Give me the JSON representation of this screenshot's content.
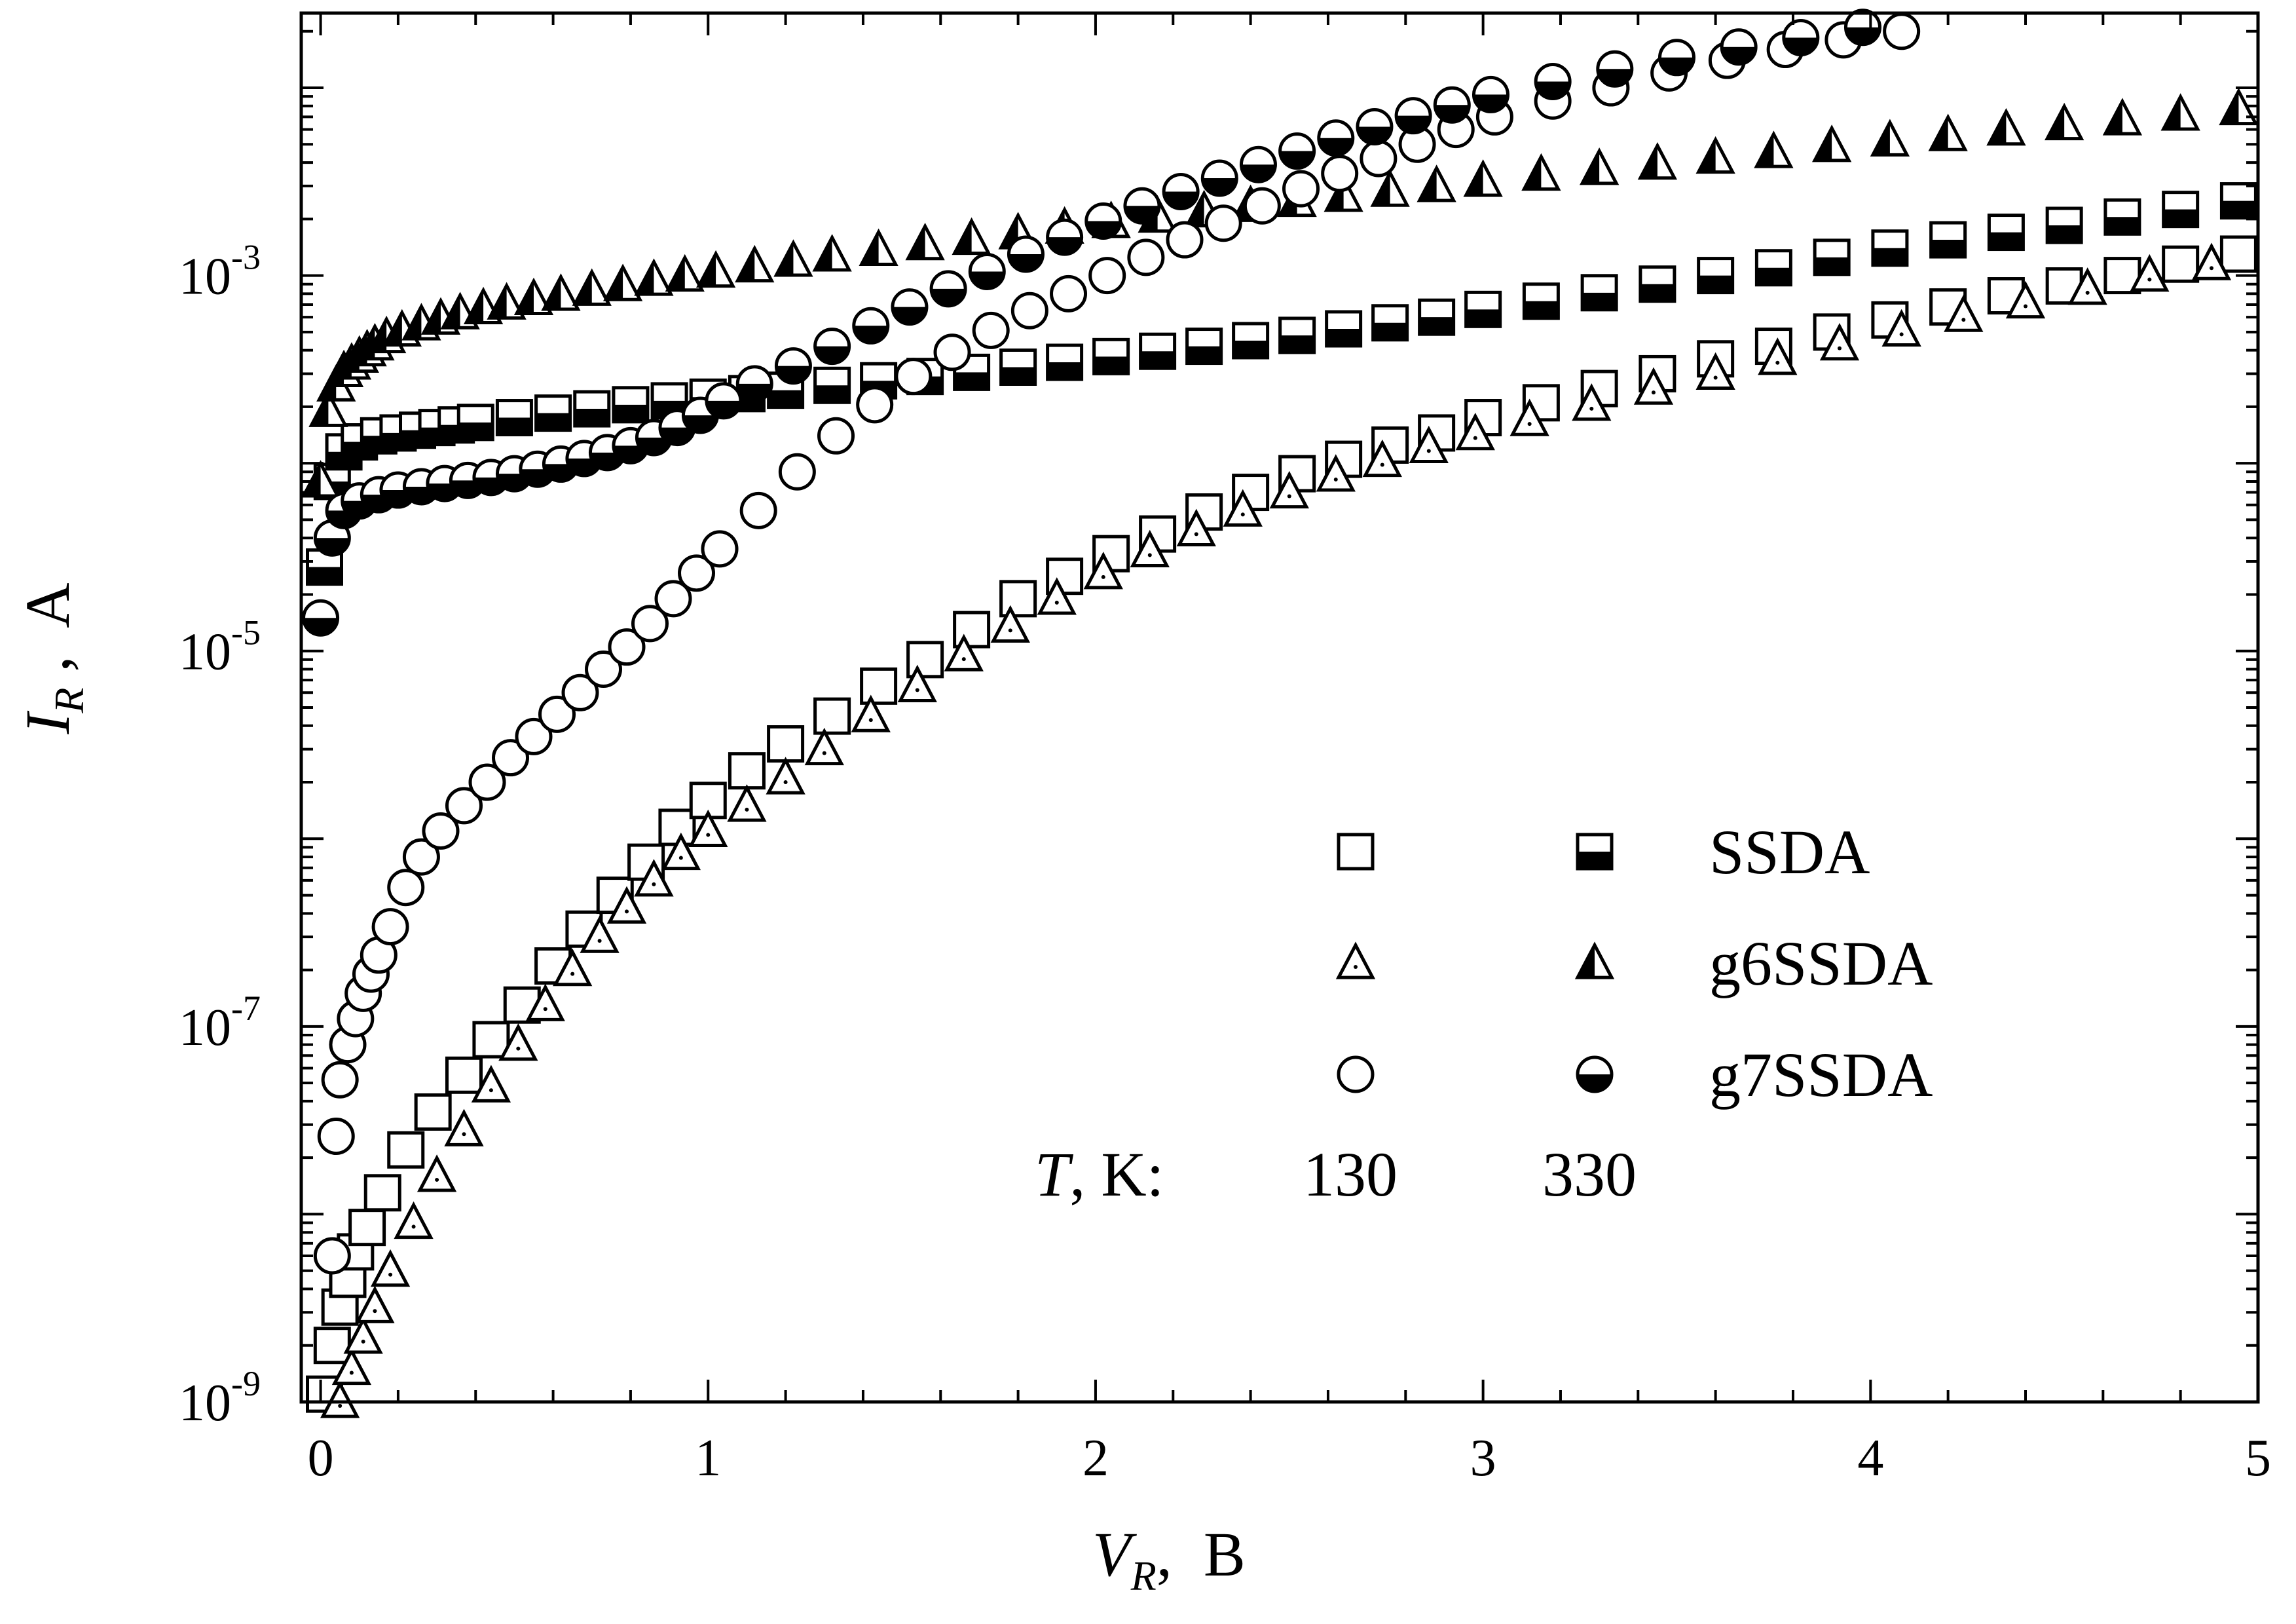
{
  "chart_data": {
    "type": "scatter",
    "xlabel": {
      "main": "V",
      "sub": "R",
      "unit": ",  B"
    },
    "ylabel": {
      "main": "I",
      "sub": "R",
      "unit": " ,  A"
    },
    "xlim": [
      -0.05,
      5.0
    ],
    "ylim": [
      1e-09,
      0.025
    ],
    "yscale": "log",
    "x_ticks": [
      0,
      1,
      2,
      3,
      4,
      5
    ],
    "x_tick_labels": [
      "0",
      "1",
      "2",
      "3",
      "4",
      "5"
    ],
    "y_tick_values": [
      1e-09,
      1e-07,
      1e-05,
      0.001
    ],
    "y_tick_labels": [
      {
        "base": "10",
        "exp": "-9"
      },
      {
        "base": "10",
        "exp": "-7"
      },
      {
        "base": "10",
        "exp": "-5"
      },
      {
        "base": "10",
        "exp": "-3"
      }
    ],
    "grid": false,
    "legend_position": "lower-right",
    "legend": {
      "rows": [
        {
          "name": "SSDA",
          "marker": "square"
        },
        {
          "name": "g6SSDA",
          "marker": "triangle"
        },
        {
          "name": "g7SSDA",
          "marker": "circle"
        }
      ],
      "temp_label": {
        "italic": "T",
        "rest": ", K:"
      },
      "temp_values": [
        "130",
        "330"
      ]
    },
    "series": [
      {
        "group": "SSDA",
        "temperature": "130",
        "marker": "square",
        "fill": "open",
        "x": [
          0.01,
          0.03,
          0.05,
          0.07,
          0.09,
          0.12,
          0.16,
          0.22,
          0.29,
          0.37,
          0.44,
          0.52,
          0.6,
          0.68,
          0.76,
          0.84,
          0.92,
          1.0,
          1.1,
          1.2,
          1.32,
          1.44,
          1.56,
          1.68,
          1.8,
          1.92,
          2.04,
          2.16,
          2.28,
          2.4,
          2.52,
          2.64,
          2.76,
          2.88,
          3.0,
          3.15,
          3.3,
          3.45,
          3.6,
          3.75,
          3.9,
          4.05,
          4.2,
          4.35,
          4.5,
          4.65,
          4.8,
          4.95
        ],
        "y": [
          1.1e-09,
          2e-09,
          3.2e-09,
          4.5e-09,
          6.3e-09,
          8.5e-09,
          1.3e-08,
          2.2e-08,
          3.5e-08,
          5.5e-08,
          8.5e-08,
          1.3e-07,
          2.1e-07,
          3.3e-07,
          5e-07,
          7.5e-07,
          1.15e-06,
          1.6e-06,
          2.3e-06,
          3.2e-06,
          4.5e-06,
          6.5e-06,
          9e-06,
          1.3e-05,
          1.9e-05,
          2.5e-05,
          3.3e-05,
          4.2e-05,
          5.5e-05,
          7e-05,
          8.8e-05,
          0.000105,
          0.000125,
          0.000145,
          0.000175,
          0.00021,
          0.00025,
          0.0003,
          0.00036,
          0.00042,
          0.0005,
          0.00058,
          0.00068,
          0.00078,
          0.00088,
          0.001,
          0.00115,
          0.0013
        ]
      },
      {
        "group": "SSDA",
        "temperature": "330",
        "marker": "square",
        "fill": "half",
        "x": [
          0.01,
          0.03,
          0.06,
          0.1,
          0.15,
          0.2,
          0.25,
          0.3,
          0.35,
          0.4,
          0.5,
          0.6,
          0.7,
          0.8,
          0.9,
          1.0,
          1.1,
          1.2,
          1.32,
          1.44,
          1.56,
          1.68,
          1.8,
          1.92,
          2.04,
          2.16,
          2.28,
          2.4,
          2.52,
          2.64,
          2.76,
          2.88,
          3.0,
          3.15,
          3.3,
          3.45,
          3.6,
          3.75,
          3.9,
          4.05,
          4.2,
          4.35,
          4.5,
          4.65,
          4.8,
          4.95
        ],
        "y": [
          2.8e-05,
          8e-05,
          0.000115,
          0.00013,
          0.00014,
          0.000145,
          0.00015,
          0.000155,
          0.00016,
          0.000165,
          0.000175,
          0.000185,
          0.000195,
          0.000205,
          0.000215,
          0.000225,
          0.000235,
          0.000245,
          0.00026,
          0.000275,
          0.00029,
          0.000305,
          0.000325,
          0.000345,
          0.00037,
          0.000395,
          0.00042,
          0.00045,
          0.00048,
          0.00052,
          0.00056,
          0.0006,
          0.00066,
          0.00073,
          0.00081,
          0.0009,
          0.001,
          0.0011,
          0.00125,
          0.0014,
          0.00155,
          0.0017,
          0.00185,
          0.00205,
          0.00225,
          0.0025
        ]
      },
      {
        "group": "g6SSDA",
        "temperature": "130",
        "marker": "triangle",
        "fill": "open",
        "x": [
          0.05,
          0.08,
          0.11,
          0.14,
          0.18,
          0.24,
          0.3,
          0.37,
          0.44,
          0.51,
          0.58,
          0.65,
          0.72,
          0.79,
          0.86,
          0.93,
          1.0,
          1.1,
          1.2,
          1.3,
          1.42,
          1.54,
          1.66,
          1.78,
          1.9,
          2.02,
          2.14,
          2.26,
          2.38,
          2.5,
          2.62,
          2.74,
          2.86,
          2.98,
          3.12,
          3.28,
          3.44,
          3.6,
          3.76,
          3.92,
          4.08,
          4.24,
          4.4,
          4.56,
          4.72,
          4.88
        ],
        "y": [
          1e-09,
          1.5e-09,
          2.2e-09,
          3.2e-09,
          5e-09,
          9e-09,
          1.6e-08,
          2.8e-08,
          4.8e-08,
          8e-08,
          1.3e-07,
          2e-07,
          3e-07,
          4.3e-07,
          6e-07,
          8.3e-07,
          1.1e-06,
          1.5e-06,
          2.1e-06,
          3e-06,
          4.5e-06,
          6.5e-06,
          9.5e-06,
          1.35e-05,
          1.9e-05,
          2.6e-05,
          3.4e-05,
          4.4e-05,
          5.6e-05,
          7e-05,
          8.6e-05,
          0.000103,
          0.000122,
          0.000143,
          0.00017,
          0.000205,
          0.00025,
          0.0003,
          0.00036,
          0.00043,
          0.00051,
          0.00061,
          0.00072,
          0.00085,
          0.001,
          0.00115
        ]
      },
      {
        "group": "g6SSDA",
        "temperature": "330",
        "marker": "triangle",
        "fill": "half",
        "x": [
          0.0,
          0.02,
          0.04,
          0.06,
          0.08,
          0.1,
          0.12,
          0.14,
          0.17,
          0.21,
          0.26,
          0.31,
          0.36,
          0.42,
          0.48,
          0.55,
          0.62,
          0.7,
          0.78,
          0.86,
          0.94,
          1.02,
          1.12,
          1.22,
          1.32,
          1.44,
          1.56,
          1.68,
          1.8,
          1.92,
          2.04,
          2.16,
          2.28,
          2.4,
          2.52,
          2.64,
          2.76,
          2.88,
          3.0,
          3.15,
          3.3,
          3.45,
          3.6,
          3.75,
          3.9,
          4.05,
          4.2,
          4.35,
          4.5,
          4.65,
          4.8,
          4.95
        ],
        "y": [
          8e-05,
          0.00019,
          0.00026,
          0.00031,
          0.00034,
          0.00037,
          0.0004,
          0.00043,
          0.00047,
          0.00051,
          0.00055,
          0.00059,
          0.00063,
          0.00067,
          0.00071,
          0.00075,
          0.00079,
          0.00084,
          0.00089,
          0.00095,
          0.001,
          0.00105,
          0.00112,
          0.0012,
          0.00128,
          0.00137,
          0.00147,
          0.00157,
          0.00168,
          0.0018,
          0.00193,
          0.00206,
          0.0022,
          0.00235,
          0.0025,
          0.00266,
          0.00283,
          0.003,
          0.0032,
          0.00345,
          0.0037,
          0.00395,
          0.00425,
          0.00455,
          0.0049,
          0.00525,
          0.0056,
          0.006,
          0.0064,
          0.0068,
          0.0072,
          0.0077
        ]
      },
      {
        "group": "g7SSDA",
        "temperature": "130",
        "marker": "circle",
        "fill": "open",
        "x": [
          0.03,
          0.04,
          0.05,
          0.07,
          0.09,
          0.11,
          0.13,
          0.15,
          0.18,
          0.22,
          0.26,
          0.31,
          0.37,
          0.43,
          0.49,
          0.55,
          0.61,
          0.67,
          0.73,
          0.79,
          0.85,
          0.91,
          0.97,
          1.03,
          1.13,
          1.23,
          1.33,
          1.43,
          1.53,
          1.63,
          1.73,
          1.83,
          1.93,
          2.03,
          2.13,
          2.23,
          2.33,
          2.43,
          2.53,
          2.63,
          2.73,
          2.83,
          2.93,
          3.03,
          3.18,
          3.33,
          3.48,
          3.63,
          3.78,
          3.93,
          4.08
        ],
        "y": [
          6e-09,
          2.6e-08,
          5.2e-08,
          8e-08,
          1.1e-07,
          1.5e-07,
          1.9e-07,
          2.4e-07,
          3.4e-07,
          5.5e-07,
          8e-07,
          1.1e-06,
          1.5e-06,
          2e-06,
          2.7e-06,
          3.5e-06,
          4.6e-06,
          6e-06,
          8e-06,
          1.05e-05,
          1.4e-05,
          1.9e-05,
          2.6e-05,
          3.5e-05,
          5.6e-05,
          9e-05,
          0.00014,
          0.000205,
          0.00029,
          0.00039,
          0.00051,
          0.00065,
          0.0008,
          0.001,
          0.00125,
          0.00155,
          0.0019,
          0.00235,
          0.0029,
          0.0035,
          0.0042,
          0.005,
          0.006,
          0.007,
          0.0085,
          0.01,
          0.012,
          0.014,
          0.016,
          0.018,
          0.02
        ]
      },
      {
        "group": "g7SSDA",
        "temperature": "330",
        "marker": "circle",
        "fill": "half",
        "x": [
          0.0,
          0.03,
          0.06,
          0.1,
          0.15,
          0.2,
          0.26,
          0.32,
          0.38,
          0.44,
          0.5,
          0.56,
          0.62,
          0.68,
          0.74,
          0.8,
          0.86,
          0.92,
          0.98,
          1.04,
          1.12,
          1.22,
          1.32,
          1.42,
          1.52,
          1.62,
          1.72,
          1.82,
          1.92,
          2.02,
          2.12,
          2.22,
          2.32,
          2.42,
          2.52,
          2.62,
          2.72,
          2.82,
          2.92,
          3.02,
          3.18,
          3.34,
          3.5,
          3.66,
          3.82,
          3.98
        ],
        "y": [
          1.5e-05,
          4e-05,
          5.6e-05,
          6.3e-05,
          6.8e-05,
          7.2e-05,
          7.5e-05,
          7.8e-05,
          8.1e-05,
          8.4e-05,
          8.8e-05,
          9.3e-05,
          9.9e-05,
          0.000106,
          0.000114,
          0.000124,
          0.000137,
          0.000155,
          0.00018,
          0.000215,
          0.000265,
          0.00033,
          0.00042,
          0.00054,
          0.00068,
          0.00085,
          0.00105,
          0.0013,
          0.0016,
          0.00195,
          0.00235,
          0.0028,
          0.0033,
          0.0039,
          0.0046,
          0.0054,
          0.0062,
          0.0071,
          0.0081,
          0.0092,
          0.0108,
          0.0126,
          0.0145,
          0.0165,
          0.0185,
          0.021
        ]
      }
    ]
  }
}
